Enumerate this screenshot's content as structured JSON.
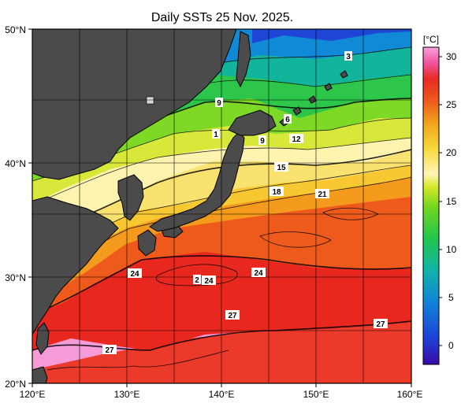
{
  "title": "Daily SSTs 25 Nov. 2025.",
  "lon_ticks": [
    "120°E",
    "130°E",
    "140°E",
    "150°E",
    "160°E"
  ],
  "lat_ticks": [
    "50°N",
    "40°N",
    "30°N",
    "20°N"
  ],
  "colorbar": {
    "unit": "[°C]",
    "ticks": [
      "30",
      "25",
      "20",
      "15",
      "10",
      "5",
      "0"
    ],
    "range": [
      -3,
      31
    ],
    "colors": [
      "#3a0aa6",
      "#1e40d6",
      "#0f86d8",
      "#10b5a6",
      "#23c64b",
      "#77d81e",
      "#d8e82a",
      "#fff5b8",
      "#f7d93a",
      "#f2a41c",
      "#ee5a1b",
      "#e82a25",
      "#f0539e",
      "#f9a2df"
    ]
  },
  "map": {
    "lon_range": [
      120,
      160
    ],
    "lat_range": [
      20,
      50
    ],
    "land_color": "#4b4b4b",
    "contour_labels": [
      "3",
      "9",
      "6",
      "1",
      "9",
      "12",
      "15",
      "18",
      "21",
      "24",
      "2",
      "24",
      "24",
      "27",
      "27",
      "27"
    ]
  }
}
